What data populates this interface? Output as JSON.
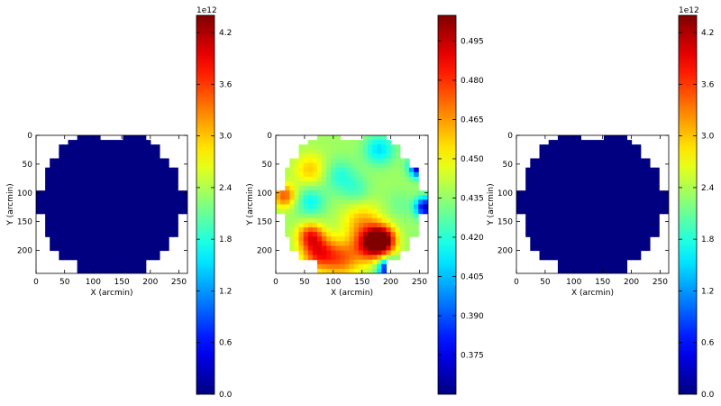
{
  "chart_data": [
    {
      "type": "heatmap",
      "id": "map-1",
      "xlabel": "X (arcmin)",
      "ylabel": "Y (arcmin)",
      "xlim": [
        0,
        265
      ],
      "ylim": [
        240,
        0
      ],
      "xticks": [
        0,
        50,
        100,
        150,
        200,
        250
      ],
      "yticks": [
        0,
        50,
        100,
        150,
        200
      ],
      "colorbar": {
        "min": 0,
        "max": 4.4,
        "ticks": [
          "0.0",
          "0.6",
          "1.2",
          "1.8",
          "2.4",
          "3.0",
          "3.6",
          "4.2"
        ],
        "tick_values": [
          0,
          0.6,
          1.2,
          1.8,
          2.4,
          3.0,
          3.6,
          4.2
        ],
        "offset_text": "1e12"
      },
      "fill_value": 0.0
    },
    {
      "type": "heatmap",
      "id": "map-2",
      "xlabel": "X (arcmin)",
      "ylabel": "Y (arcmin)",
      "xlim": [
        0,
        265
      ],
      "ylim": [
        240,
        0
      ],
      "xticks": [
        0,
        50,
        100,
        150,
        200,
        250
      ],
      "yticks": [
        0,
        50,
        100,
        150,
        200
      ],
      "colorbar": {
        "min": 0.36,
        "max": 0.5048,
        "ticks": [
          "0.375",
          "0.390",
          "0.405",
          "0.420",
          "0.435",
          "0.450",
          "0.465",
          "0.480",
          "0.495"
        ],
        "tick_values": [
          0.375,
          0.39,
          0.405,
          0.42,
          0.435,
          0.45,
          0.465,
          0.48,
          0.495
        ],
        "offset_text": ""
      },
      "base_value": 0.437,
      "features": [
        {
          "x": 185,
          "y": 182,
          "value": 0.505,
          "sigma": 16
        },
        {
          "x": 165,
          "y": 190,
          "value": 0.49,
          "sigma": 20
        },
        {
          "x": 75,
          "y": 205,
          "value": 0.48,
          "sigma": 20
        },
        {
          "x": 60,
          "y": 175,
          "value": 0.478,
          "sigma": 16
        },
        {
          "x": 15,
          "y": 105,
          "value": 0.475,
          "sigma": 14
        },
        {
          "x": 115,
          "y": 215,
          "value": 0.47,
          "sigma": 22
        },
        {
          "x": 150,
          "y": 150,
          "value": 0.46,
          "sigma": 24
        },
        {
          "x": 60,
          "y": 60,
          "value": 0.458,
          "sigma": 20
        },
        {
          "x": 250,
          "y": 55,
          "value": 0.36,
          "sigma": 12
        },
        {
          "x": 260,
          "y": 125,
          "value": 0.37,
          "sigma": 12
        },
        {
          "x": 195,
          "y": 232,
          "value": 0.37,
          "sigma": 12
        },
        {
          "x": 180,
          "y": 25,
          "value": 0.41,
          "sigma": 18
        },
        {
          "x": 60,
          "y": 115,
          "value": 0.415,
          "sigma": 18
        },
        {
          "x": 110,
          "y": 70,
          "value": 0.42,
          "sigma": 20
        },
        {
          "x": 140,
          "y": 95,
          "value": 0.425,
          "sigma": 18
        },
        {
          "x": 215,
          "y": 120,
          "value": 0.43,
          "sigma": 18
        },
        {
          "x": 240,
          "y": 175,
          "value": 0.435,
          "sigma": 14
        }
      ]
    },
    {
      "type": "heatmap",
      "id": "map-3",
      "xlabel": "X (arcmin)",
      "ylabel": "Y (arcmin)",
      "xlim": [
        0,
        265
      ],
      "ylim": [
        240,
        0
      ],
      "xticks": [
        0,
        50,
        100,
        150,
        200,
        250
      ],
      "yticks": [
        0,
        50,
        100,
        150,
        200
      ],
      "colorbar": {
        "min": 0,
        "max": 4.4,
        "ticks": [
          "0.0",
          "0.6",
          "1.2",
          "1.8",
          "2.4",
          "3.0",
          "3.6",
          "4.2"
        ],
        "tick_values": [
          0,
          0.6,
          1.2,
          1.8,
          2.4,
          3.0,
          3.6,
          4.2
        ],
        "offset_text": "1e12"
      },
      "fill_value": 0.0
    }
  ],
  "footprint": {
    "grid_step": 8,
    "row_segments": [
      [
        0,
        8,
        [
          [
            75,
            112
          ],
          [
            150,
            190
          ]
        ]
      ],
      [
        8,
        20,
        [
          [
            60,
            200
          ]
        ]
      ],
      [
        20,
        40,
        [
          [
            40,
            220
          ]
        ]
      ],
      [
        40,
        60,
        [
          [
            25,
            235
          ]
        ]
      ],
      [
        60,
        98,
        [
          [
            18,
            247
          ]
        ]
      ],
      [
        98,
        140,
        [
          [
            0,
            265
          ]
        ]
      ],
      [
        140,
        180,
        [
          [
            18,
            247
          ]
        ]
      ],
      [
        180,
        200,
        [
          [
            25,
            235
          ]
        ]
      ],
      [
        200,
        220,
        [
          [
            40,
            220
          ]
        ]
      ],
      [
        220,
        240,
        [
          [
            75,
            190
          ]
        ]
      ]
    ]
  },
  "colors": {
    "background": "#ffffff",
    "axis": "#000000"
  }
}
